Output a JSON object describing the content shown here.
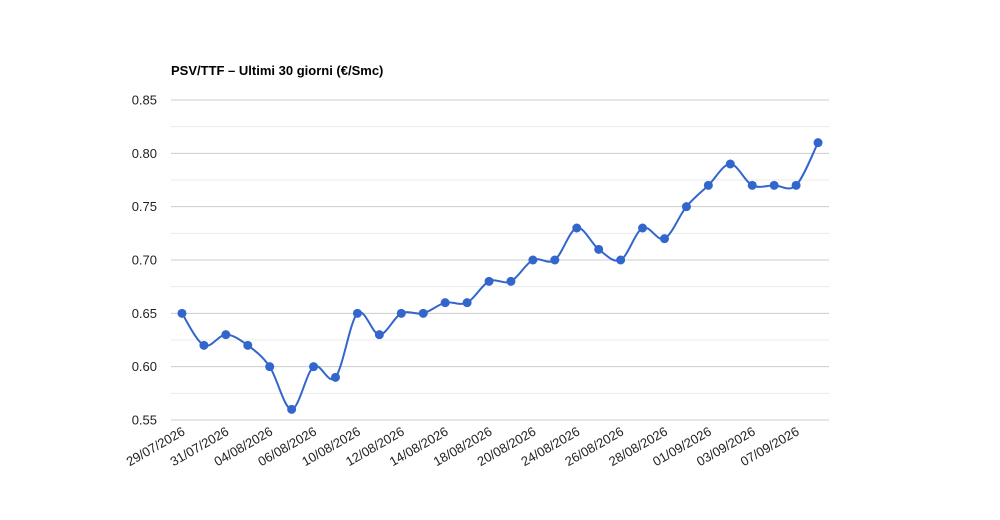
{
  "chart_data": {
    "type": "line",
    "title": "PSV/TTF – Ultimi 30 giorni (€/Smc)",
    "categories": [
      "29/07/2026",
      null,
      "31/07/2026",
      null,
      "04/08/2026",
      null,
      "06/08/2026",
      null,
      "10/08/2026",
      null,
      "12/08/2026",
      null,
      "14/08/2026",
      null,
      "18/08/2026",
      null,
      "20/08/2026",
      null,
      "24/08/2026",
      null,
      "26/08/2026",
      null,
      "28/08/2026",
      null,
      "01/09/2026",
      null,
      "03/09/2026",
      null,
      "07/09/2026",
      null
    ],
    "series": [
      {
        "name": "PSV/TTF",
        "color": "#3366cc",
        "values": [
          0.65,
          0.62,
          0.63,
          0.62,
          0.6,
          0.56,
          0.6,
          0.59,
          0.65,
          0.63,
          0.65,
          0.65,
          0.66,
          0.66,
          0.68,
          0.68,
          0.7,
          0.7,
          0.73,
          0.71,
          0.7,
          0.73,
          0.72,
          0.75,
          0.77,
          0.79,
          0.77,
          0.77,
          0.77,
          0.81
        ]
      }
    ],
    "ylim": [
      0.55,
      0.85
    ],
    "yticks": [
      0.55,
      {
        "value": 0.6,
        "label": "0.60"
      },
      0.65,
      {
        "value": 0.7,
        "label": "0.70"
      },
      0.75,
      {
        "value": 0.8,
        "label": "0.80"
      },
      0.85
    ],
    "grid": true,
    "minor_grid": true,
    "smooth": true
  }
}
